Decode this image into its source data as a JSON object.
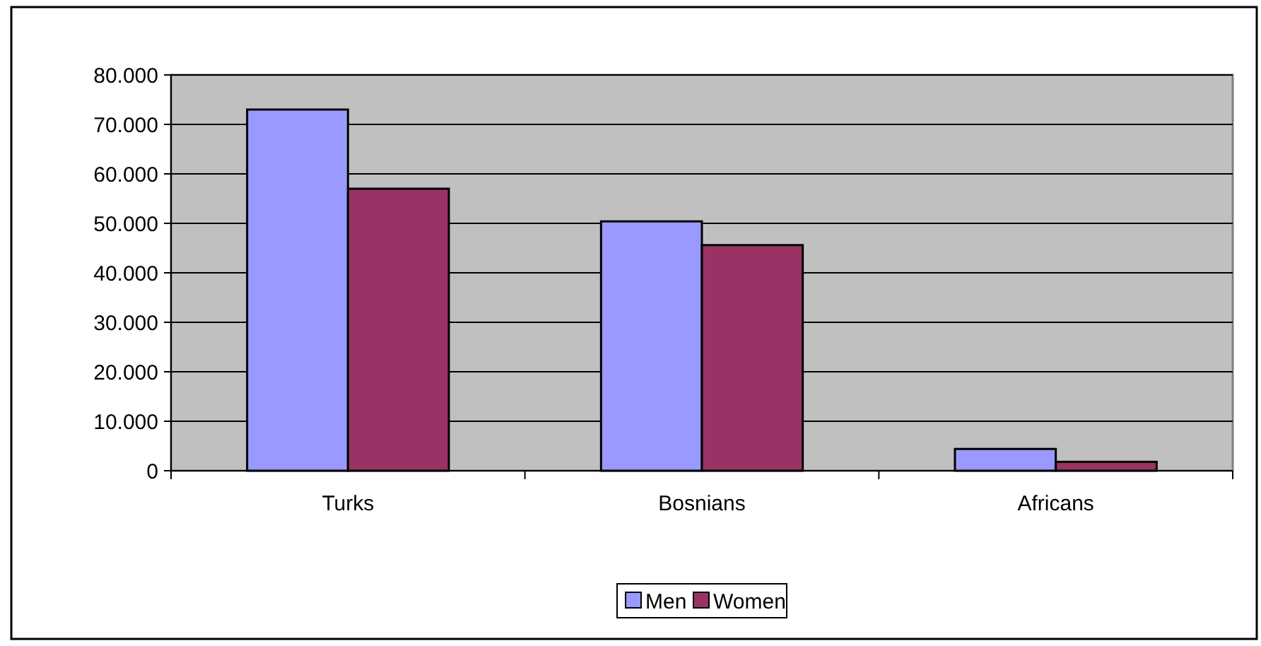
{
  "chart_data": {
    "type": "bar",
    "categories": [
      "Turks",
      "Bosnians",
      "Africans"
    ],
    "series": [
      {
        "name": "Men",
        "color": "#9999ff",
        "values": [
          73000,
          50400,
          4400
        ]
      },
      {
        "name": "Women",
        "color": "#993366",
        "values": [
          57000,
          45600,
          1800
        ]
      }
    ],
    "ylim": [
      0,
      80000
    ],
    "yticks": [
      {
        "value": 0,
        "label": "0"
      },
      {
        "value": 10000,
        "label": "10.000"
      },
      {
        "value": 20000,
        "label": "20.000"
      },
      {
        "value": 30000,
        "label": "30.000"
      },
      {
        "value": 40000,
        "label": "40.000"
      },
      {
        "value": 50000,
        "label": "50.000"
      },
      {
        "value": 60000,
        "label": "60.000"
      },
      {
        "value": 70000,
        "label": "70.000"
      },
      {
        "value": 80000,
        "label": "80.000"
      }
    ],
    "grid": "y",
    "legend": "bottom"
  }
}
